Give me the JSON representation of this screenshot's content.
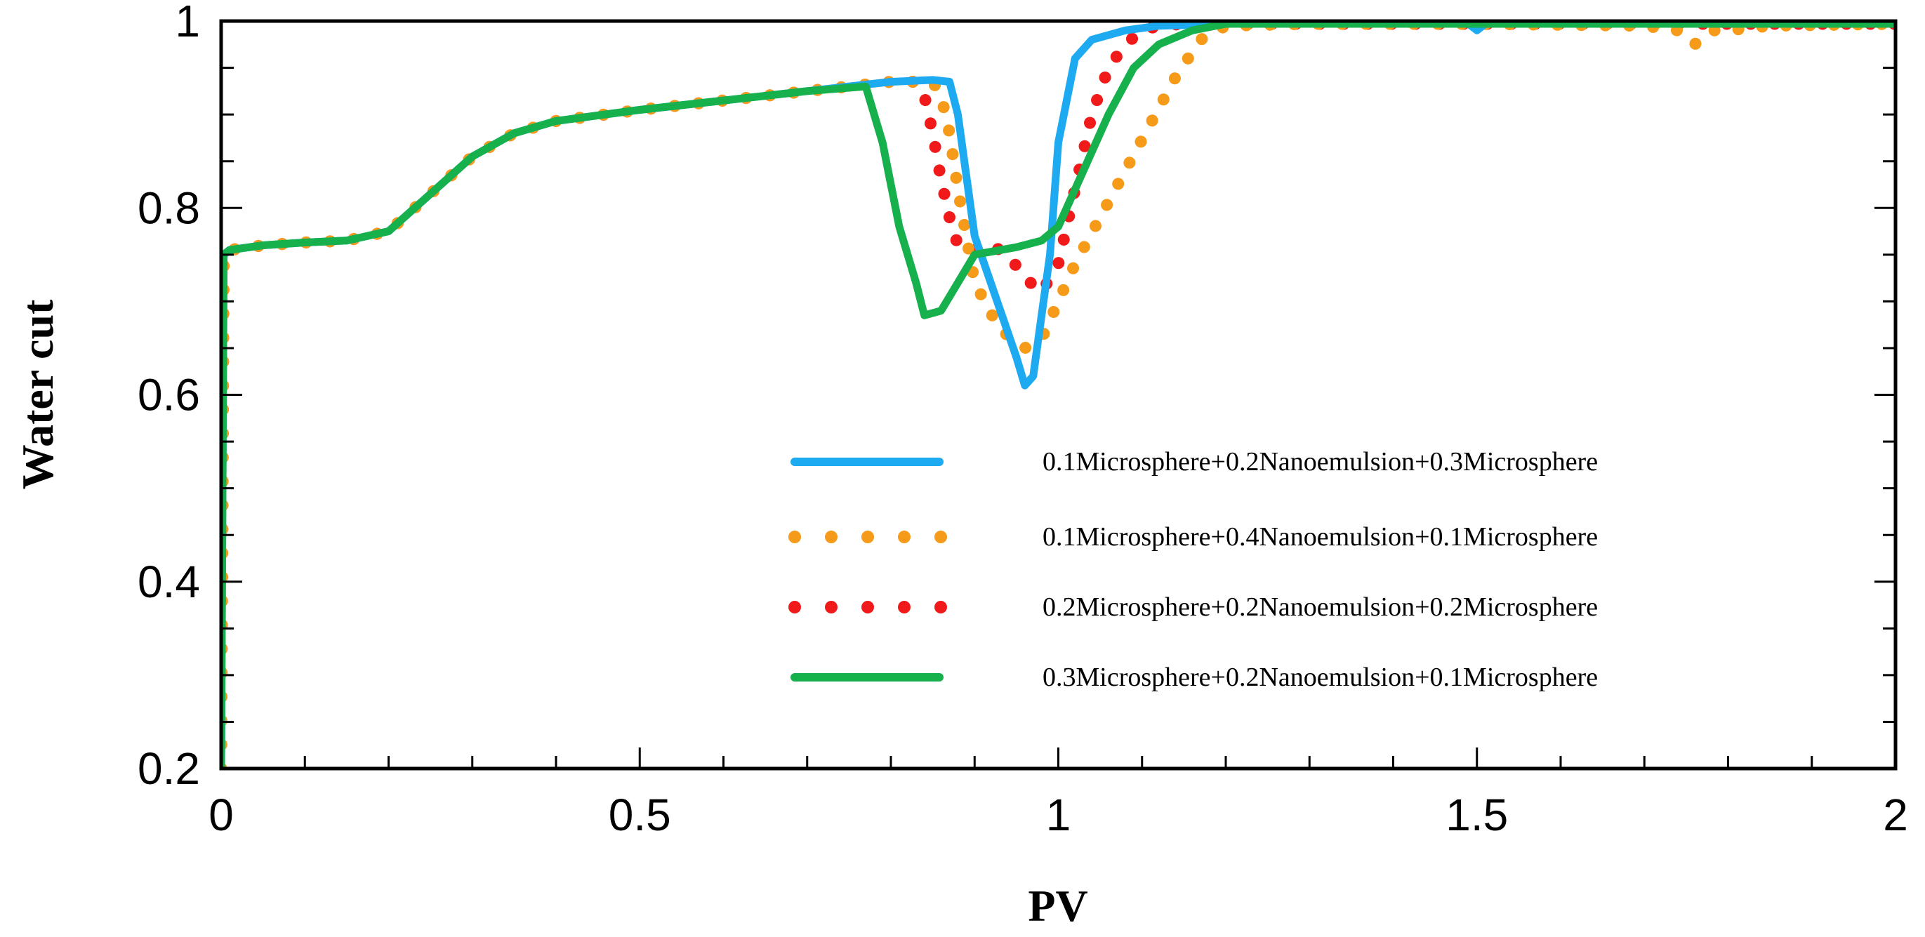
{
  "chart_data": {
    "type": "line",
    "title": "",
    "xlabel": "PV",
    "ylabel": "Water cut",
    "xlim": [
      0,
      2
    ],
    "ylim": [
      0.2,
      1
    ],
    "xticks": [
      0,
      0.5,
      1,
      1.5,
      2
    ],
    "xtick_labels": [
      "0",
      "0.5",
      "1",
      "1.5",
      "2"
    ],
    "yticks": [
      0.2,
      0.4,
      0.6,
      0.8,
      1
    ],
    "ytick_labels": [
      "0.2",
      "0.4",
      "0.6",
      "0.8",
      "1"
    ],
    "grid": false,
    "legend_position": "center-right",
    "series": [
      {
        "name": "0.1Microsphere+0.2Nanoemulsion+0.3Microsphere",
        "color": "#1eaaf1",
        "style": "solid",
        "x": [
          0,
          0.003,
          0.01,
          0.05,
          0.1,
          0.15,
          0.2,
          0.25,
          0.3,
          0.35,
          0.4,
          0.5,
          0.6,
          0.7,
          0.8,
          0.85,
          0.87,
          0.88,
          0.9,
          0.95,
          0.96,
          0.97,
          0.99,
          1.0,
          1.02,
          1.04,
          1.08,
          1.12,
          1.2,
          1.4,
          1.49,
          1.5,
          1.51,
          1.6,
          1.8,
          2.0
        ],
        "y": [
          0.2,
          0.75,
          0.755,
          0.76,
          0.763,
          0.765,
          0.775,
          0.815,
          0.855,
          0.88,
          0.893,
          0.905,
          0.915,
          0.925,
          0.935,
          0.937,
          0.935,
          0.9,
          0.77,
          0.64,
          0.61,
          0.62,
          0.75,
          0.87,
          0.96,
          0.98,
          0.99,
          0.995,
          0.997,
          0.997,
          0.997,
          0.99,
          0.997,
          0.997,
          0.997,
          0.997
        ]
      },
      {
        "name": "0.1Microsphere+0.4Nanoemulsion+0.1Microsphere",
        "color": "#f59a19",
        "style": "dotted",
        "x": [
          0,
          0.003,
          0.01,
          0.05,
          0.1,
          0.15,
          0.2,
          0.25,
          0.3,
          0.35,
          0.4,
          0.5,
          0.6,
          0.7,
          0.8,
          0.85,
          0.86,
          0.87,
          0.88,
          0.9,
          0.93,
          0.96,
          0.98,
          1.0,
          1.02,
          1.05,
          1.08,
          1.11,
          1.14,
          1.17,
          1.2,
          1.3,
          1.5,
          1.7,
          1.74,
          1.76,
          1.78,
          1.8,
          1.85,
          2.0
        ],
        "y": [
          0.2,
          0.75,
          0.755,
          0.76,
          0.763,
          0.765,
          0.775,
          0.815,
          0.855,
          0.88,
          0.893,
          0.905,
          0.915,
          0.925,
          0.935,
          0.935,
          0.92,
          0.88,
          0.82,
          0.72,
          0.67,
          0.65,
          0.66,
          0.7,
          0.74,
          0.79,
          0.84,
          0.89,
          0.94,
          0.98,
          0.995,
          0.997,
          0.997,
          0.995,
          0.99,
          0.975,
          0.99,
          0.99,
          0.995,
          0.997
        ]
      },
      {
        "name": "0.2Microsphere+0.2Nanoemulsion+0.2Microsphere",
        "color": "#f01a1a",
        "style": "dotted",
        "x": [
          0,
          0.003,
          0.01,
          0.05,
          0.1,
          0.15,
          0.2,
          0.25,
          0.3,
          0.35,
          0.4,
          0.5,
          0.6,
          0.7,
          0.8,
          0.83,
          0.84,
          0.85,
          0.86,
          0.87,
          0.88,
          0.9,
          0.92,
          0.94,
          0.96,
          0.98,
          1.0,
          1.02,
          1.04,
          1.06,
          1.08,
          1.1,
          1.12,
          1.15,
          1.2,
          1.4,
          2.0
        ],
        "y": [
          0.2,
          0.75,
          0.755,
          0.76,
          0.763,
          0.765,
          0.775,
          0.815,
          0.855,
          0.88,
          0.893,
          0.905,
          0.915,
          0.925,
          0.935,
          0.935,
          0.92,
          0.88,
          0.83,
          0.79,
          0.76,
          0.755,
          0.76,
          0.75,
          0.725,
          0.71,
          0.74,
          0.82,
          0.9,
          0.95,
          0.975,
          0.99,
          0.995,
          0.997,
          0.997,
          0.997,
          0.997
        ]
      },
      {
        "name": "0.3Microsphere+0.2Nanoemulsion+0.1Microsphere",
        "color": "#16b04c",
        "style": "solid",
        "x": [
          0,
          0.003,
          0.01,
          0.05,
          0.1,
          0.15,
          0.2,
          0.25,
          0.3,
          0.35,
          0.4,
          0.5,
          0.6,
          0.7,
          0.77,
          0.79,
          0.81,
          0.83,
          0.84,
          0.86,
          0.88,
          0.9,
          0.95,
          0.98,
          1.0,
          1.03,
          1.06,
          1.09,
          1.12,
          1.16,
          1.2,
          1.3,
          1.5,
          2.0
        ],
        "y": [
          0.2,
          0.75,
          0.755,
          0.76,
          0.763,
          0.765,
          0.775,
          0.815,
          0.855,
          0.88,
          0.893,
          0.905,
          0.915,
          0.925,
          0.93,
          0.87,
          0.78,
          0.72,
          0.685,
          0.69,
          0.72,
          0.75,
          0.758,
          0.765,
          0.78,
          0.84,
          0.9,
          0.95,
          0.975,
          0.99,
          0.997,
          0.997,
          0.997,
          0.997
        ]
      }
    ]
  }
}
